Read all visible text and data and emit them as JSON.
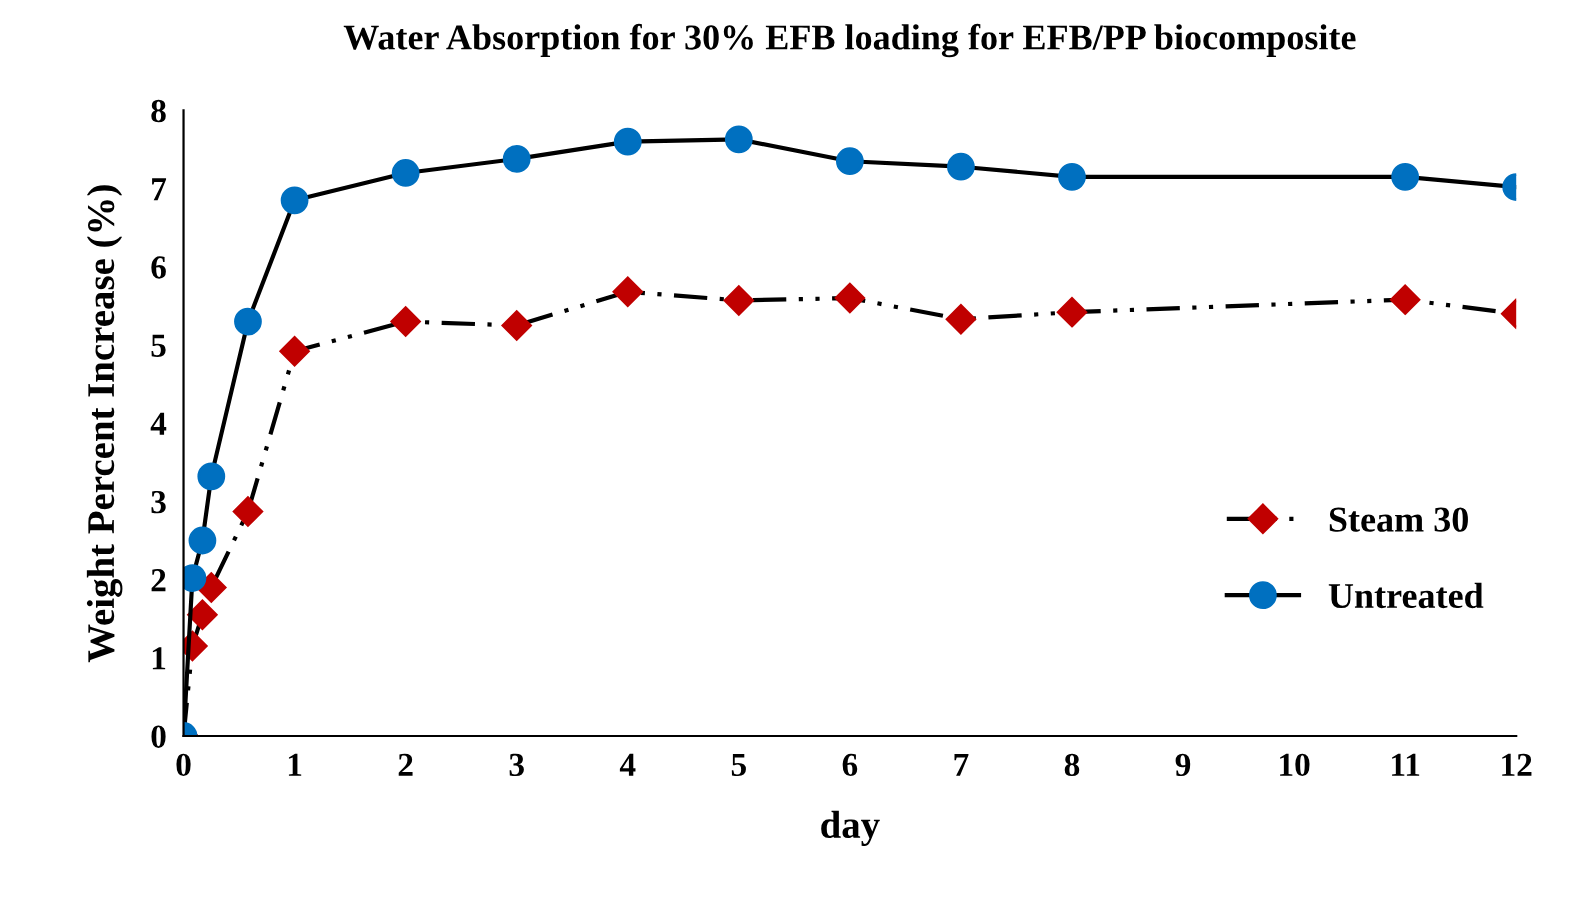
{
  "chart_data": {
    "type": "line",
    "title": "Water Absorption for 30% EFB loading for EFB/PP biocomposite",
    "xlabel": "day",
    "ylabel": "Weight Percent Increase (%)",
    "x": [
      0,
      0.08,
      0.17,
      0.25,
      0.58,
      1,
      2,
      3,
      4,
      5,
      6,
      7,
      8,
      11,
      12
    ],
    "series": [
      {
        "name": "Steam 30",
        "color": "#c00000",
        "marker": "diamond",
        "line_style": "dashed",
        "values": [
          0,
          1.15,
          1.55,
          1.9,
          2.87,
          4.92,
          5.3,
          5.25,
          5.68,
          5.57,
          5.6,
          5.33,
          5.42,
          5.58,
          5.4
        ]
      },
      {
        "name": "Untreated",
        "color": "#0070c0",
        "marker": "circle",
        "line_style": "solid",
        "values": [
          0,
          2.02,
          2.5,
          3.32,
          5.3,
          6.85,
          7.2,
          7.38,
          7.6,
          7.63,
          7.35,
          7.28,
          7.15,
          7.15,
          7.02
        ]
      }
    ],
    "xlim": [
      0,
      12
    ],
    "xticks": [
      0,
      1,
      2,
      3,
      4,
      5,
      6,
      7,
      8,
      9,
      10,
      11,
      12
    ],
    "ylim": [
      0,
      8
    ],
    "yticks": [
      0,
      1,
      2,
      3,
      4,
      5,
      6,
      7,
      8
    ],
    "grid": false,
    "legend": "right"
  }
}
